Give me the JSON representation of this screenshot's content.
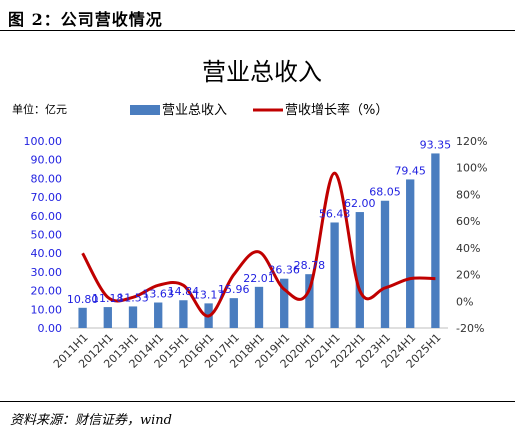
{
  "figure": {
    "title": "图 2：公司营收情况",
    "source": "资料来源：财信证券，wind"
  },
  "chart_data": {
    "type": "bar",
    "title": "营业总收入",
    "unit_label": "单位：亿元",
    "legend_position": "top",
    "categories": [
      "2011H1",
      "2012H1",
      "2013H1",
      "2014H1",
      "2015H1",
      "2016H1",
      "2017H1",
      "2018H1",
      "2019H1",
      "2020H1",
      "2021H1",
      "2022H1",
      "2023H1",
      "2024H1",
      "2025H1"
    ],
    "series": [
      {
        "name": "营业总收入",
        "type": "bar",
        "axis": "left",
        "color": "#4a7dbf",
        "label_color": "#1f1fe0",
        "values": [
          10.8,
          11.18,
          11.53,
          13.63,
          14.84,
          13.17,
          15.96,
          22.01,
          26.36,
          28.78,
          56.43,
          62.0,
          68.05,
          79.45,
          93.35
        ],
        "labels": [
          "10.80",
          "11.18",
          "11.53",
          "13.63",
          "14.84",
          "13.17",
          "15.96",
          "22.01",
          "26.36",
          "28.78",
          "56.43",
          "62.00",
          "68.05",
          "79.45",
          "93.35"
        ]
      },
      {
        "name": "营收增长率（%）",
        "type": "line",
        "axis": "right",
        "color": "#c00000",
        "values": [
          36,
          3,
          3,
          12,
          12,
          -11,
          20,
          37,
          9,
          9,
          96,
          8,
          10,
          17,
          17
        ]
      }
    ],
    "left_axis": {
      "ylim": [
        0,
        100
      ],
      "ticks": [
        "0.00",
        "10.00",
        "20.00",
        "30.00",
        "40.00",
        "50.00",
        "60.00",
        "70.00",
        "80.00",
        "90.00",
        "100.00"
      ],
      "color": "#1f1fe0"
    },
    "right_axis": {
      "ylim": [
        -20,
        120
      ],
      "ticks": [
        "-20%",
        "0%",
        "20%",
        "40%",
        "60%",
        "80%",
        "100%",
        "120%"
      ],
      "color": "#333333"
    },
    "grid": false
  }
}
